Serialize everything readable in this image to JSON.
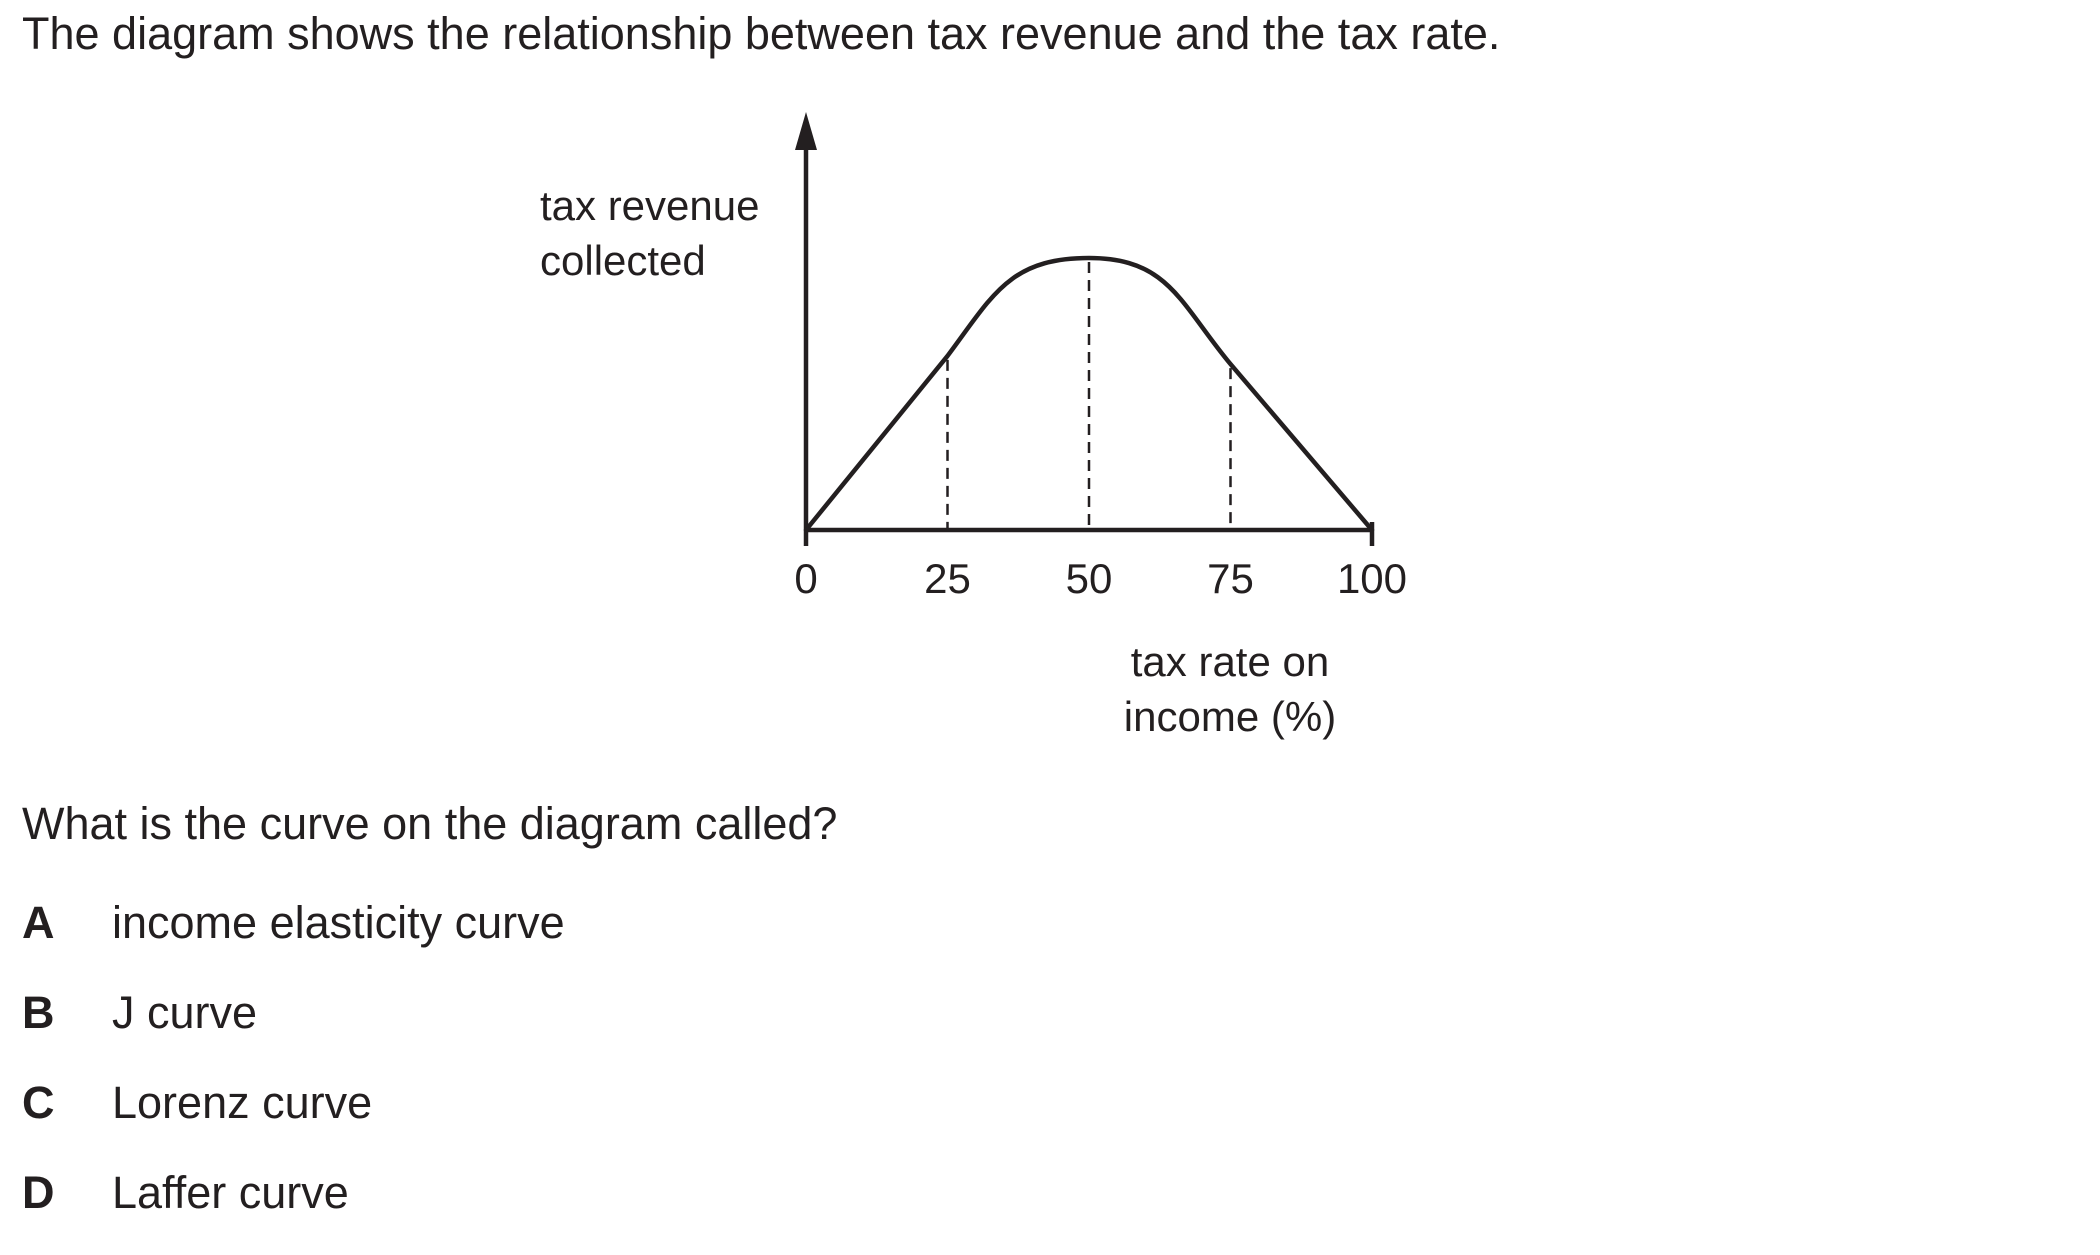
{
  "intro": "The diagram shows the relationship between tax revenue and the tax rate.",
  "chart_data": {
    "type": "line",
    "ylabel_lines": [
      "tax revenue",
      "collected"
    ],
    "xlabel_lines": [
      "tax rate on",
      "income (%)"
    ],
    "x_ticks": [
      "0",
      "25",
      "50",
      "75",
      "100"
    ],
    "xlim": [
      0,
      100
    ],
    "series": [
      {
        "x": [
          0,
          25,
          50,
          75,
          100
        ],
        "y": [
          0,
          0.64,
          1,
          0.61,
          0
        ]
      }
    ],
    "dashed_guides_x": [
      25,
      50,
      75
    ]
  },
  "question": "What is the curve on the diagram called?",
  "options": [
    {
      "letter": "A",
      "text": "income elasticity curve"
    },
    {
      "letter": "B",
      "text": "J curve"
    },
    {
      "letter": "C",
      "text": "Lorenz curve"
    },
    {
      "letter": "D",
      "text": "Laffer curve"
    }
  ]
}
